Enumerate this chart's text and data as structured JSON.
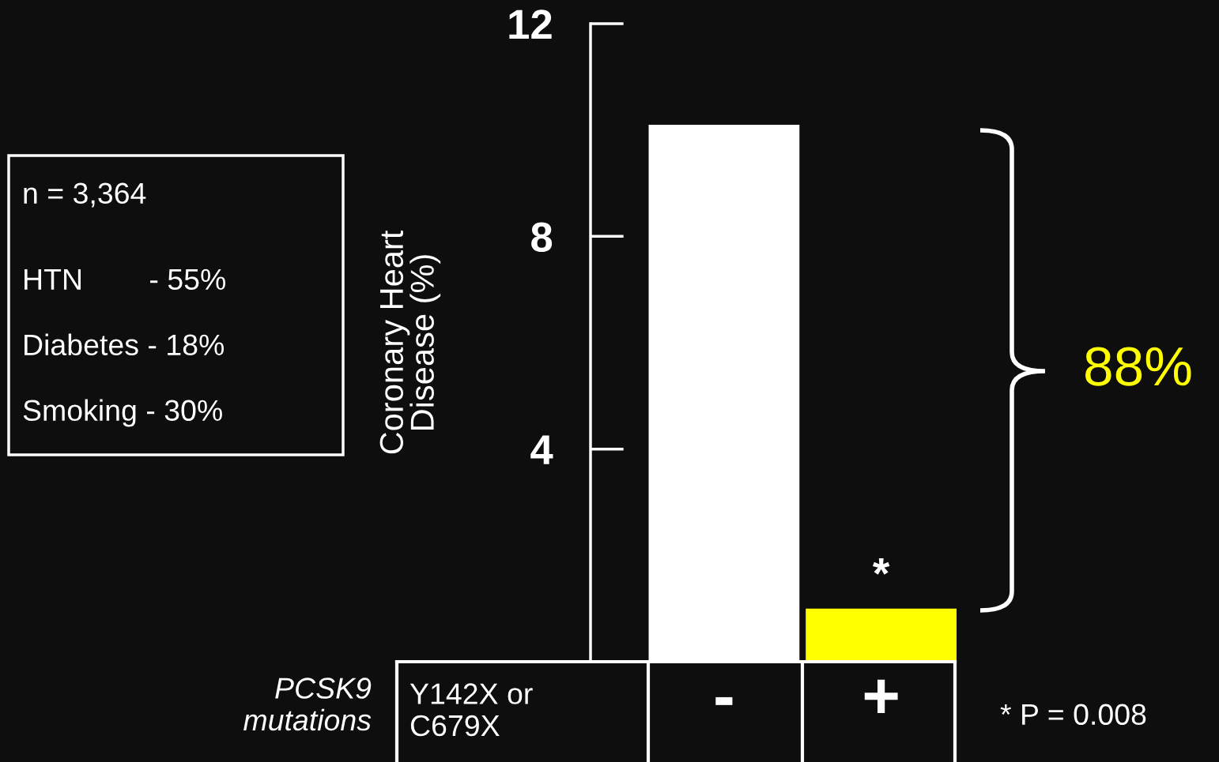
{
  "chart_data": {
    "type": "bar",
    "ylabel": "Coronary Heart\nDisease (%)",
    "categories": [
      "-",
      "+"
    ],
    "values": [
      10.1,
      1.0
    ],
    "colors": [
      "#ffffff",
      "#ffff00"
    ],
    "ylim": [
      0,
      12
    ],
    "yticks": [
      4,
      8,
      12
    ],
    "grid": false,
    "legend": false,
    "annotations": [
      "n = 3,364",
      "HTN        - 55%",
      "Diabetes - 18%",
      "Smoking - 30%",
      "PCSK9\nmutations",
      "Y142X or\nC679X",
      {
        "text": "*",
        "x": "+",
        "y": 1.0
      },
      "88%",
      "* P = 0.008"
    ]
  }
}
